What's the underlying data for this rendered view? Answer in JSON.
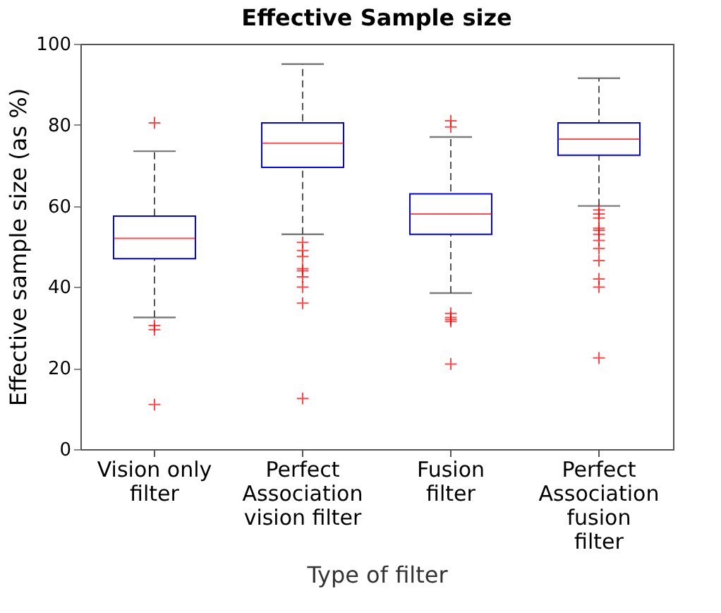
{
  "chart_data": {
    "type": "box",
    "title": "Effective Sample size",
    "xlabel": "Type of filter",
    "ylabel": "Effective sample size (as %)",
    "categories": [
      "Vision only\nfilter",
      "Perfect\nAssociation\nvision filter",
      "Fusion\nfilter",
      "Perfect\nAssociation\nfusion\nfilter"
    ],
    "boxes": [
      {
        "low": 32.5,
        "q1": 47,
        "median": 52,
        "q3": 57.5,
        "high": 73.5,
        "outliers": [
          80.5,
          30.5,
          29.5,
          11
        ]
      },
      {
        "low": 53,
        "q1": 69.5,
        "median": 75.5,
        "q3": 80.5,
        "high": 95,
        "outliers": [
          51,
          49,
          47.5,
          44.5,
          44,
          42.5,
          40,
          36,
          12.5
        ]
      },
      {
        "low": 38.5,
        "q1": 53,
        "median": 58,
        "q3": 63,
        "high": 77,
        "outliers": [
          81,
          79.5,
          33.5,
          32.5,
          32,
          31.5,
          21
        ]
      },
      {
        "low": 60,
        "q1": 72.5,
        "median": 76.5,
        "q3": 80.5,
        "high": 91.5,
        "outliers": [
          59,
          58,
          57,
          54.5,
          54,
          53,
          51.5,
          49.5,
          46.5,
          42,
          40,
          22.5
        ]
      }
    ],
    "ylim": [
      0,
      100
    ],
    "yticks": [
      0,
      20,
      40,
      60,
      80,
      100
    ],
    "grid": false
  }
}
